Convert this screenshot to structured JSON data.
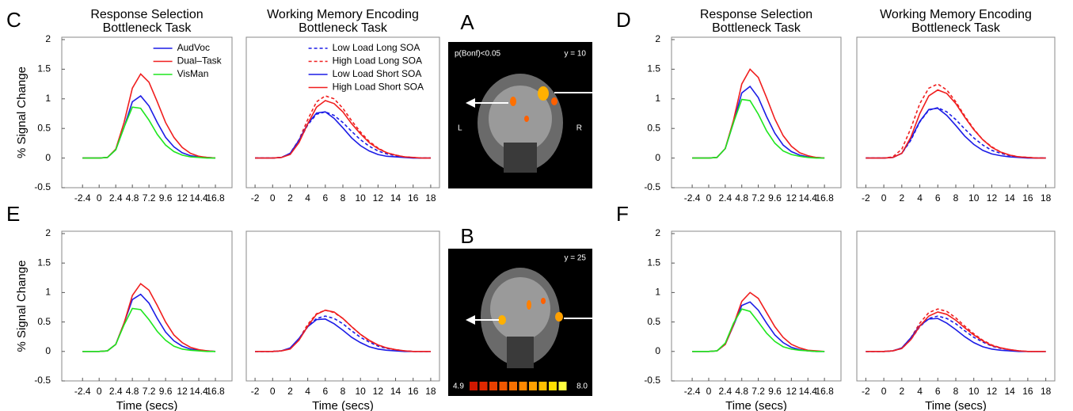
{
  "chart_data": [
    {
      "type": "line",
      "panel_label": "C",
      "title": [
        "Response Selection",
        "Bottleneck Task"
      ],
      "y_label": "% Signal Change",
      "legend": "upper right",
      "x": [
        -2.4,
        -1.2,
        0,
        1.2,
        2.4,
        3.6,
        4.8,
        6,
        7.2,
        8.4,
        9.6,
        10.8,
        12,
        13.2,
        14.4,
        15.6,
        16.8
      ],
      "xlim": [
        -5.4,
        19.2
      ],
      "xticks": [
        -2.4,
        0,
        2.4,
        4.8,
        7.2,
        9.6,
        12,
        14.4,
        16.8
      ],
      "ylim": [
        -0.5,
        2.04
      ],
      "yticks": [
        -0.5,
        0,
        0.5,
        1,
        1.5,
        2
      ],
      "series": [
        {
          "name": "AudVoc",
          "color": "#1c1ce6",
          "linestyle": "solid",
          "values": [
            0,
            0,
            0,
            0.01,
            0.14,
            0.52,
            0.95,
            1.05,
            0.88,
            0.6,
            0.35,
            0.19,
            0.09,
            0.04,
            0.02,
            0.01,
            0
          ]
        },
        {
          "name": "Dual–Task",
          "color": "#f01e1e",
          "linestyle": "solid",
          "values": [
            0,
            0,
            0,
            0.01,
            0.15,
            0.6,
            1.18,
            1.42,
            1.28,
            0.95,
            0.6,
            0.35,
            0.18,
            0.08,
            0.03,
            0.01,
            0
          ]
        },
        {
          "name": "VisMan",
          "color": "#1ee61e",
          "linestyle": "solid",
          "values": [
            0,
            0,
            0,
            0.01,
            0.14,
            0.52,
            0.86,
            0.84,
            0.64,
            0.4,
            0.22,
            0.11,
            0.05,
            0.02,
            0.01,
            0,
            0
          ]
        }
      ]
    },
    {
      "type": "line",
      "title": [
        "Working Memory Encoding",
        "Bottleneck Task"
      ],
      "legend": "upper right",
      "x": [
        -2,
        -1,
        0,
        1,
        2,
        3,
        4,
        5,
        6,
        7,
        8,
        9,
        10,
        11,
        12,
        13,
        14,
        15,
        16,
        17,
        18
      ],
      "xlim": [
        -3,
        19
      ],
      "xticks": [
        -2,
        0,
        2,
        4,
        6,
        8,
        10,
        12,
        14,
        16,
        18
      ],
      "ylim": [
        -0.5,
        2.04
      ],
      "series": [
        {
          "name": "Low Load Long SOA",
          "color": "#1c1ce6",
          "linestyle": "dashed",
          "values": [
            0,
            0,
            0,
            0.01,
            0.07,
            0.28,
            0.56,
            0.74,
            0.78,
            0.72,
            0.6,
            0.45,
            0.31,
            0.2,
            0.12,
            0.07,
            0.04,
            0.02,
            0.01,
            0,
            0
          ]
        },
        {
          "name": "High Load Long SOA",
          "color": "#f01e1e",
          "linestyle": "dashed",
          "values": [
            0,
            0,
            0,
            0.01,
            0.08,
            0.31,
            0.65,
            0.95,
            1.05,
            1.0,
            0.84,
            0.63,
            0.44,
            0.28,
            0.17,
            0.09,
            0.05,
            0.02,
            0.01,
            0,
            0
          ]
        },
        {
          "name": "Low Load Short SOA",
          "color": "#1c1ce6",
          "linestyle": "solid",
          "values": [
            0,
            0,
            0,
            0.01,
            0.08,
            0.3,
            0.58,
            0.76,
            0.78,
            0.67,
            0.51,
            0.34,
            0.21,
            0.12,
            0.06,
            0.03,
            0.02,
            0.01,
            0,
            0,
            0
          ]
        },
        {
          "name": "High Load Short SOA",
          "color": "#f01e1e",
          "linestyle": "solid",
          "values": [
            0,
            0,
            0,
            0.01,
            0.06,
            0.26,
            0.58,
            0.86,
            0.97,
            0.92,
            0.78,
            0.58,
            0.41,
            0.26,
            0.16,
            0.09,
            0.05,
            0.02,
            0.01,
            0,
            0
          ]
        }
      ]
    },
    {
      "type": "line",
      "panel_label": "D",
      "title": [
        "Response Selection",
        "Bottleneck Task"
      ],
      "x": [
        -2.4,
        -1.2,
        0,
        1.2,
        2.4,
        3.6,
        4.8,
        6,
        7.2,
        8.4,
        9.6,
        10.8,
        12,
        13.2,
        14.4,
        15.6,
        16.8
      ],
      "xlim": [
        -5.4,
        19.2
      ],
      "xticks": [
        -2.4,
        0,
        2.4,
        4.8,
        7.2,
        9.6,
        12,
        14.4,
        16.8
      ],
      "ylim": [
        -0.5,
        2.04
      ],
      "yticks": [
        -0.5,
        0,
        0.5,
        1,
        1.5,
        2
      ],
      "series": [
        {
          "name": "AudVoc",
          "color": "#1c1ce6",
          "linestyle": "solid",
          "values": [
            0,
            0,
            0,
            0.01,
            0.16,
            0.6,
            1.1,
            1.21,
            1.02,
            0.7,
            0.42,
            0.22,
            0.11,
            0.05,
            0.02,
            0.01,
            0
          ]
        },
        {
          "name": "Dual–Task",
          "color": "#f01e1e",
          "linestyle": "solid",
          "values": [
            0,
            0,
            0,
            0.01,
            0.16,
            0.64,
            1.25,
            1.5,
            1.36,
            1.02,
            0.66,
            0.38,
            0.2,
            0.09,
            0.04,
            0.01,
            0
          ]
        },
        {
          "name": "VisMan",
          "color": "#1ee61e",
          "linestyle": "solid",
          "values": [
            0,
            0,
            0,
            0.01,
            0.16,
            0.6,
            0.99,
            0.97,
            0.74,
            0.46,
            0.25,
            0.12,
            0.06,
            0.03,
            0.01,
            0,
            0
          ]
        }
      ]
    },
    {
      "type": "line",
      "title": [
        "Working Memory Encoding",
        "Bottleneck Task"
      ],
      "x": [
        -2,
        -1,
        0,
        1,
        2,
        3,
        4,
        5,
        6,
        7,
        8,
        9,
        10,
        11,
        12,
        13,
        14,
        15,
        16,
        17,
        18
      ],
      "xlim": [
        -3,
        19
      ],
      "xticks": [
        -2,
        0,
        2,
        4,
        6,
        8,
        10,
        12,
        14,
        16,
        18
      ],
      "ylim": [
        -0.5,
        2.04
      ],
      "series": [
        {
          "name": "Low Load Long SOA",
          "color": "#1c1ce6",
          "linestyle": "dashed",
          "values": [
            0,
            0,
            0,
            0.01,
            0.08,
            0.3,
            0.61,
            0.81,
            0.85,
            0.78,
            0.65,
            0.49,
            0.34,
            0.22,
            0.13,
            0.08,
            0.04,
            0.02,
            0.01,
            0,
            0
          ]
        },
        {
          "name": "High Load Long SOA",
          "color": "#f01e1e",
          "linestyle": "dashed",
          "values": [
            0,
            0,
            0,
            0.02,
            0.15,
            0.5,
            0.92,
            1.18,
            1.25,
            1.15,
            0.95,
            0.71,
            0.49,
            0.31,
            0.19,
            0.1,
            0.05,
            0.02,
            0.01,
            0,
            0
          ]
        },
        {
          "name": "Low Load Short SOA",
          "color": "#1c1ce6",
          "linestyle": "solid",
          "values": [
            0,
            0,
            0,
            0.01,
            0.08,
            0.32,
            0.62,
            0.82,
            0.84,
            0.72,
            0.55,
            0.37,
            0.23,
            0.13,
            0.07,
            0.04,
            0.02,
            0.01,
            0,
            0,
            0
          ]
        },
        {
          "name": "High Load Short SOA",
          "color": "#f01e1e",
          "linestyle": "solid",
          "values": [
            0,
            0,
            0,
            0.01,
            0.08,
            0.35,
            0.75,
            1.05,
            1.15,
            1.09,
            0.92,
            0.69,
            0.48,
            0.31,
            0.18,
            0.1,
            0.05,
            0.02,
            0.01,
            0,
            0
          ]
        }
      ]
    },
    {
      "type": "line",
      "panel_label": "E",
      "y_label": "% Signal Change",
      "x_label": "Time (secs)",
      "x": [
        -2.4,
        -1.2,
        0,
        1.2,
        2.4,
        3.6,
        4.8,
        6,
        7.2,
        8.4,
        9.6,
        10.8,
        12,
        13.2,
        14.4,
        15.6,
        16.8
      ],
      "xlim": [
        -5.4,
        19.2
      ],
      "xticks": [
        -2.4,
        0,
        2.4,
        4.8,
        7.2,
        9.6,
        12,
        14.4,
        16.8
      ],
      "ylim": [
        -0.5,
        2.04
      ],
      "yticks": [
        -0.5,
        0,
        0.5,
        1,
        1.5,
        2
      ],
      "series": [
        {
          "name": "AudVoc",
          "color": "#1c1ce6",
          "linestyle": "solid",
          "values": [
            0,
            0,
            0,
            0.01,
            0.12,
            0.48,
            0.88,
            0.97,
            0.82,
            0.56,
            0.33,
            0.18,
            0.09,
            0.04,
            0.02,
            0.01,
            0
          ]
        },
        {
          "name": "Dual–Task",
          "color": "#f01e1e",
          "linestyle": "solid",
          "values": [
            0,
            0,
            0,
            0.01,
            0.12,
            0.48,
            0.95,
            1.15,
            1.04,
            0.78,
            0.5,
            0.28,
            0.15,
            0.07,
            0.03,
            0.01,
            0
          ]
        },
        {
          "name": "VisMan",
          "color": "#1ee61e",
          "linestyle": "solid",
          "values": [
            0,
            0,
            0,
            0.01,
            0.12,
            0.45,
            0.73,
            0.71,
            0.54,
            0.34,
            0.19,
            0.09,
            0.04,
            0.02,
            0.01,
            0,
            0
          ]
        }
      ]
    },
    {
      "type": "line",
      "x_label": "Time (secs)",
      "x": [
        -2,
        -1,
        0,
        1,
        2,
        3,
        4,
        5,
        6,
        7,
        8,
        9,
        10,
        11,
        12,
        13,
        14,
        15,
        16,
        17,
        18
      ],
      "xlim": [
        -3,
        19
      ],
      "xticks": [
        -2,
        0,
        2,
        4,
        6,
        8,
        10,
        12,
        14,
        16,
        18
      ],
      "ylim": [
        -0.5,
        2.04
      ],
      "series": [
        {
          "name": "Low Load Long SOA",
          "color": "#1c1ce6",
          "linestyle": "dashed",
          "values": [
            0,
            0,
            0,
            0.01,
            0.05,
            0.2,
            0.42,
            0.56,
            0.6,
            0.56,
            0.47,
            0.35,
            0.24,
            0.16,
            0.09,
            0.05,
            0.03,
            0.01,
            0,
            0,
            0
          ]
        },
        {
          "name": "High Load Long SOA",
          "color": "#f01e1e",
          "linestyle": "dashed",
          "values": [
            0,
            0,
            0,
            0.01,
            0.05,
            0.21,
            0.46,
            0.64,
            0.7,
            0.66,
            0.56,
            0.42,
            0.29,
            0.18,
            0.11,
            0.06,
            0.03,
            0.01,
            0,
            0,
            0
          ]
        },
        {
          "name": "Low Load Short SOA",
          "color": "#1c1ce6",
          "linestyle": "solid",
          "values": [
            0,
            0,
            0,
            0.01,
            0.06,
            0.22,
            0.42,
            0.54,
            0.55,
            0.47,
            0.36,
            0.24,
            0.15,
            0.08,
            0.04,
            0.02,
            0.01,
            0,
            0,
            0,
            0
          ]
        },
        {
          "name": "High Load Short SOA",
          "color": "#f01e1e",
          "linestyle": "solid",
          "values": [
            0,
            0,
            0,
            0.01,
            0.04,
            0.19,
            0.43,
            0.63,
            0.7,
            0.67,
            0.56,
            0.42,
            0.29,
            0.19,
            0.11,
            0.06,
            0.03,
            0.01,
            0,
            0,
            0
          ]
        }
      ]
    },
    {
      "type": "line",
      "panel_label": "F",
      "x_label": "Time (secs)",
      "x": [
        -2.4,
        -1.2,
        0,
        1.2,
        2.4,
        3.6,
        4.8,
        6,
        7.2,
        8.4,
        9.6,
        10.8,
        12,
        13.2,
        14.4,
        15.6,
        16.8
      ],
      "xlim": [
        -5.4,
        19.2
      ],
      "xticks": [
        -2.4,
        0,
        2.4,
        4.8,
        7.2,
        9.6,
        12,
        14.4,
        16.8
      ],
      "ylim": [
        -0.5,
        2.04
      ],
      "yticks": [
        -0.5,
        0,
        0.5,
        1,
        1.5,
        2
      ],
      "series": [
        {
          "name": "AudVoc",
          "color": "#1c1ce6",
          "linestyle": "solid",
          "values": [
            0,
            0,
            0,
            0.01,
            0.12,
            0.44,
            0.78,
            0.84,
            0.7,
            0.48,
            0.28,
            0.15,
            0.07,
            0.03,
            0.01,
            0,
            0
          ]
        },
        {
          "name": "Dual–Task",
          "color": "#f01e1e",
          "linestyle": "solid",
          "values": [
            0,
            0,
            0,
            0.01,
            0.12,
            0.45,
            0.85,
            1.0,
            0.9,
            0.66,
            0.42,
            0.24,
            0.12,
            0.06,
            0.02,
            0.01,
            0
          ]
        },
        {
          "name": "VisMan",
          "color": "#1ee61e",
          "linestyle": "solid",
          "values": [
            0,
            0,
            0,
            0.01,
            0.14,
            0.48,
            0.72,
            0.68,
            0.5,
            0.31,
            0.17,
            0.08,
            0.04,
            0.02,
            0.01,
            0,
            0
          ]
        }
      ]
    },
    {
      "type": "line",
      "x_label": "Time (secs)",
      "x": [
        -2,
        -1,
        0,
        1,
        2,
        3,
        4,
        5,
        6,
        7,
        8,
        9,
        10,
        11,
        12,
        13,
        14,
        15,
        16,
        17,
        18
      ],
      "xlim": [
        -3,
        19
      ],
      "xticks": [
        -2,
        0,
        2,
        4,
        6,
        8,
        10,
        12,
        14,
        16,
        18
      ],
      "ylim": [
        -0.5,
        2.04
      ],
      "series": [
        {
          "name": "Low Load Long SOA",
          "color": "#1c1ce6",
          "linestyle": "dashed",
          "values": [
            0,
            0,
            0,
            0.01,
            0.05,
            0.2,
            0.42,
            0.56,
            0.6,
            0.56,
            0.47,
            0.35,
            0.24,
            0.16,
            0.09,
            0.05,
            0.03,
            0.01,
            0,
            0,
            0
          ]
        },
        {
          "name": "High Load Long SOA",
          "color": "#f01e1e",
          "linestyle": "dashed",
          "values": [
            0,
            0,
            0,
            0.01,
            0.06,
            0.23,
            0.48,
            0.66,
            0.72,
            0.68,
            0.57,
            0.43,
            0.3,
            0.19,
            0.11,
            0.06,
            0.03,
            0.01,
            0,
            0,
            0
          ]
        },
        {
          "name": "Low Load Short SOA",
          "color": "#1c1ce6",
          "linestyle": "solid",
          "values": [
            0,
            0,
            0,
            0.01,
            0.06,
            0.23,
            0.44,
            0.55,
            0.56,
            0.48,
            0.37,
            0.25,
            0.15,
            0.08,
            0.04,
            0.02,
            0.01,
            0,
            0,
            0,
            0
          ]
        },
        {
          "name": "High Load Short SOA",
          "color": "#f01e1e",
          "linestyle": "solid",
          "values": [
            0,
            0,
            0,
            0.01,
            0.05,
            0.2,
            0.43,
            0.6,
            0.67,
            0.63,
            0.53,
            0.4,
            0.28,
            0.18,
            0.1,
            0.06,
            0.03,
            0.01,
            0,
            0,
            0
          ]
        }
      ]
    }
  ],
  "brain_panels": [
    {
      "label": "A",
      "threshold": "p(Bonf)<0.05",
      "slice": "y = 10",
      "left": "L",
      "right": "R"
    },
    {
      "label": "B",
      "slice": "y = 25",
      "scale_min": "4.9",
      "scale_max": "8.0"
    }
  ]
}
